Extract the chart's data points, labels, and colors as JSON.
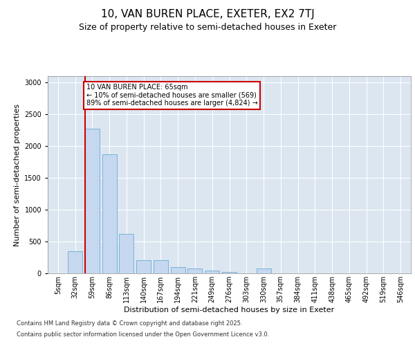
{
  "title1": "10, VAN BUREN PLACE, EXETER, EX2 7TJ",
  "title2": "Size of property relative to semi-detached houses in Exeter",
  "xlabel": "Distribution of semi-detached houses by size in Exeter",
  "ylabel": "Number of semi-detached properties",
  "categories": [
    "5sqm",
    "32sqm",
    "59sqm",
    "86sqm",
    "113sqm",
    "140sqm",
    "167sqm",
    "194sqm",
    "221sqm",
    "249sqm",
    "276sqm",
    "303sqm",
    "330sqm",
    "357sqm",
    "384sqm",
    "411sqm",
    "438sqm",
    "465sqm",
    "492sqm",
    "519sqm",
    "546sqm"
  ],
  "values": [
    5,
    350,
    2270,
    1870,
    625,
    210,
    210,
    100,
    75,
    40,
    20,
    5,
    75,
    5,
    5,
    5,
    5,
    5,
    5,
    5,
    5
  ],
  "bar_color": "#c5d8ef",
  "bar_edge_color": "#6aaad4",
  "red_line_index": 2,
  "annotation_text": "10 VAN BUREN PLACE: 65sqm\n← 10% of semi-detached houses are smaller (569)\n89% of semi-detached houses are larger (4,824) →",
  "annotation_box_color": "#ffffff",
  "annotation_box_edge": "#cc0000",
  "red_line_color": "#cc0000",
  "ylim": [
    0,
    3100
  ],
  "yticks": [
    0,
    500,
    1000,
    1500,
    2000,
    2500,
    3000
  ],
  "plot_background": "#dce6f1",
  "footer1": "Contains HM Land Registry data © Crown copyright and database right 2025.",
  "footer2": "Contains public sector information licensed under the Open Government Licence v3.0.",
  "title1_fontsize": 11,
  "title2_fontsize": 9,
  "tick_fontsize": 7,
  "label_fontsize": 8,
  "footer_fontsize": 6
}
